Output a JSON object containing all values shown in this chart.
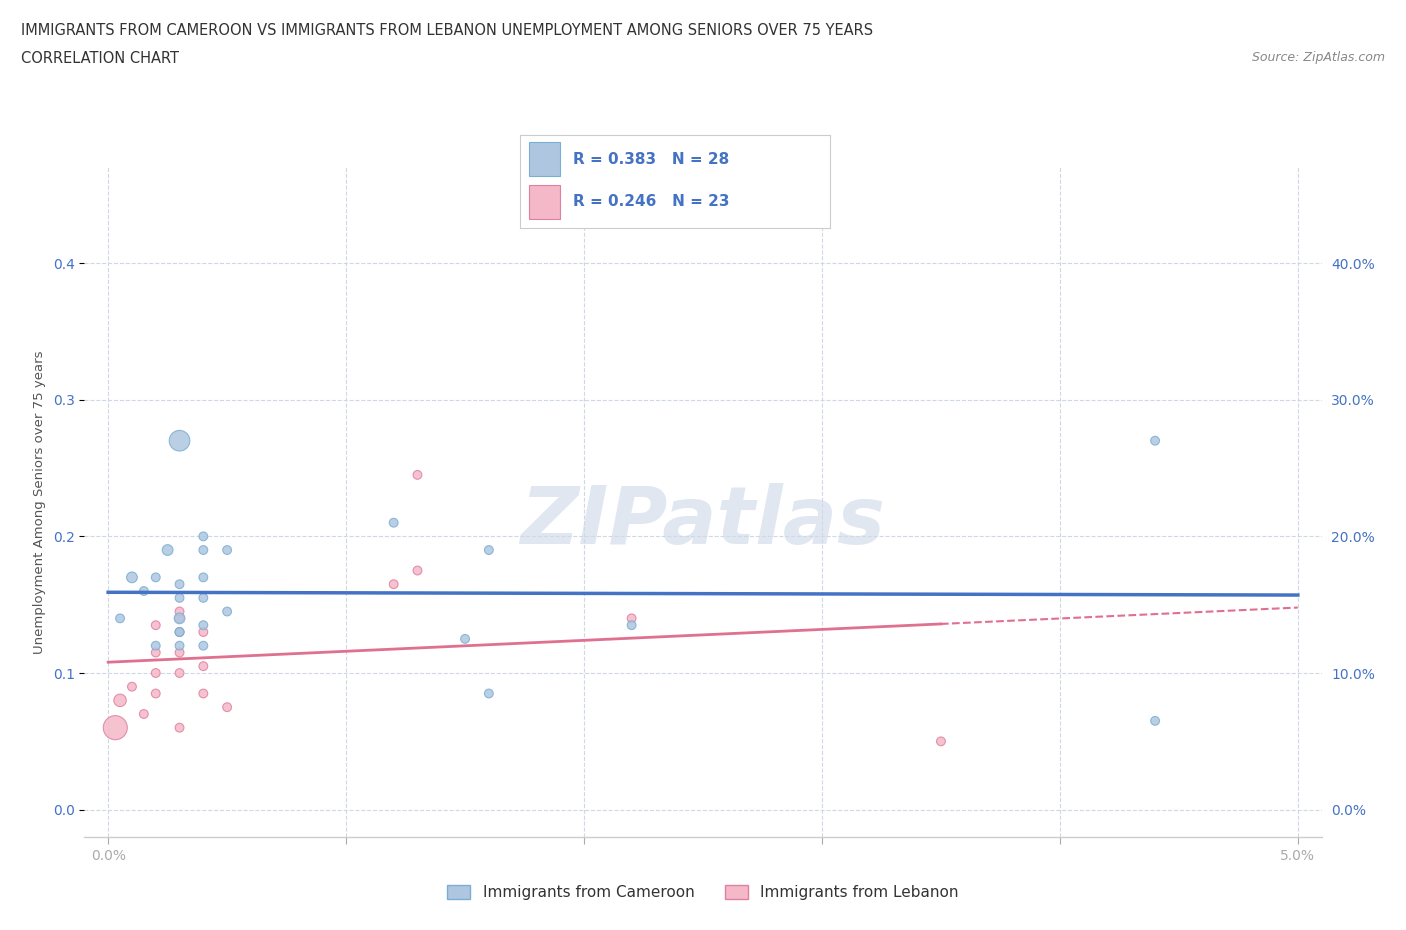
{
  "title_line1": "IMMIGRANTS FROM CAMEROON VS IMMIGRANTS FROM LEBANON UNEMPLOYMENT AMONG SENIORS OVER 75 YEARS",
  "title_line2": "CORRELATION CHART",
  "source": "Source: ZipAtlas.com",
  "ylabel": "Unemployment Among Seniors over 75 years",
  "xlim": [
    -0.001,
    0.051
  ],
  "ylim": [
    -0.02,
    0.47
  ],
  "yticks": [
    0.0,
    0.1,
    0.2,
    0.3,
    0.4
  ],
  "ytick_labels": [
    "0.0%",
    "10.0%",
    "20.0%",
    "30.0%",
    "40.0%"
  ],
  "xticks": [
    0.0,
    0.01,
    0.02,
    0.03,
    0.04,
    0.05
  ],
  "xtick_labels": [
    "0.0%",
    "",
    "",
    "",
    "",
    "5.0%"
  ],
  "cameroon_color": "#aec6e0",
  "cameroon_edge": "#7aafd4",
  "lebanon_color": "#f4b8c8",
  "lebanon_edge": "#e080a0",
  "regression_cameroon_color": "#4472c4",
  "regression_lebanon_color": "#e07090",
  "R_cameroon": 0.383,
  "N_cameroon": 28,
  "R_lebanon": 0.246,
  "N_lebanon": 23,
  "legend_label_cameroon": "Immigrants from Cameroon",
  "legend_label_lebanon": "Immigrants from Lebanon",
  "watermark": "ZIPatlas",
  "cameroon_x": [
    0.0005,
    0.001,
    0.0015,
    0.002,
    0.002,
    0.0025,
    0.003,
    0.003,
    0.003,
    0.003,
    0.003,
    0.003,
    0.003,
    0.004,
    0.004,
    0.004,
    0.004,
    0.004,
    0.004,
    0.005,
    0.005,
    0.012,
    0.015,
    0.016,
    0.016,
    0.022,
    0.044,
    0.044
  ],
  "cameroon_y": [
    0.14,
    0.17,
    0.16,
    0.12,
    0.17,
    0.19,
    0.12,
    0.13,
    0.13,
    0.14,
    0.155,
    0.165,
    0.27,
    0.12,
    0.135,
    0.155,
    0.17,
    0.19,
    0.2,
    0.145,
    0.19,
    0.21,
    0.125,
    0.19,
    0.085,
    0.135,
    0.27,
    0.065
  ],
  "cameroon_size": [
    40,
    60,
    40,
    40,
    40,
    60,
    40,
    40,
    40,
    60,
    40,
    40,
    220,
    40,
    40,
    40,
    40,
    40,
    40,
    40,
    40,
    40,
    40,
    40,
    40,
    40,
    40,
    40
  ],
  "lebanon_x": [
    0.0003,
    0.0005,
    0.001,
    0.0015,
    0.002,
    0.002,
    0.002,
    0.002,
    0.003,
    0.003,
    0.003,
    0.003,
    0.003,
    0.003,
    0.004,
    0.004,
    0.004,
    0.005,
    0.012,
    0.013,
    0.013,
    0.022,
    0.035
  ],
  "lebanon_y": [
    0.06,
    0.08,
    0.09,
    0.07,
    0.085,
    0.1,
    0.115,
    0.135,
    0.06,
    0.1,
    0.115,
    0.13,
    0.14,
    0.145,
    0.085,
    0.105,
    0.13,
    0.075,
    0.165,
    0.175,
    0.245,
    0.14,
    0.05
  ],
  "lebanon_size": [
    300,
    80,
    40,
    40,
    40,
    40,
    40,
    40,
    40,
    40,
    40,
    40,
    40,
    40,
    40,
    40,
    40,
    40,
    40,
    40,
    40,
    40,
    40
  ],
  "tick_label_color": "#4472c4",
  "grid_color": "#d0d8e8",
  "background_color": "#ffffff",
  "watermark_color": "#ccd8e8"
}
